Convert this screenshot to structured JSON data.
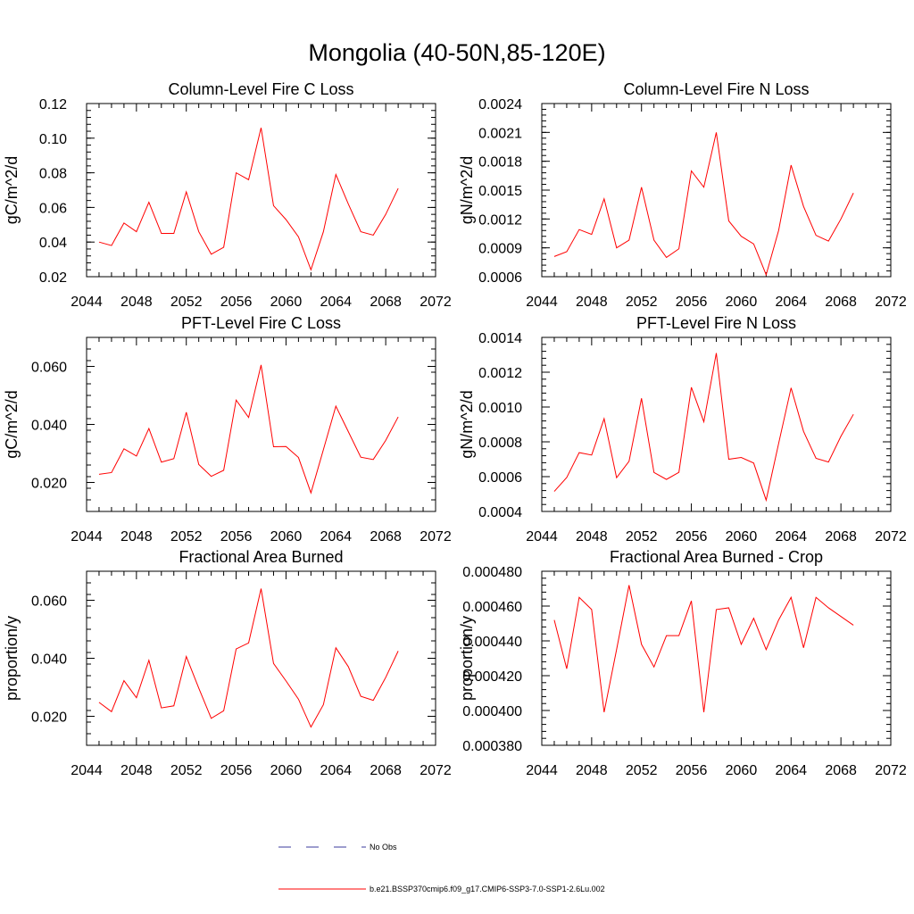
{
  "page": {
    "title": "Mongolia (40-50N,85-120E)"
  },
  "legend": {
    "entries": [
      {
        "label": "No Obs",
        "color": "#3b3b9c",
        "dashed": true
      },
      {
        "label": "b.e21.BSSP370cmip6.f09_g17.CMIP6-SSP3-7.0-SSP1-2.6Lu.002",
        "color": "#ff0000",
        "dashed": false
      }
    ]
  },
  "chart_data": [
    {
      "type": "line",
      "title": "Column-Level Fire C Loss",
      "ylabel": "gC/m^2/d",
      "xlabel": "",
      "xlim": [
        2044,
        2072
      ],
      "ylim": [
        0.02,
        0.12
      ],
      "xticks": [
        "2044",
        "2048",
        "2052",
        "2056",
        "2060",
        "2064",
        "2068",
        "2072"
      ],
      "yticks": [
        "0.02",
        "0.04",
        "0.06",
        "0.08",
        "0.10",
        "0.12"
      ],
      "x": [
        2045,
        2046,
        2047,
        2048,
        2049,
        2050,
        2051,
        2052,
        2053,
        2054,
        2055,
        2056,
        2057,
        2058,
        2059,
        2060,
        2061,
        2062,
        2063,
        2064,
        2065,
        2066,
        2067,
        2068,
        2069
      ],
      "series": [
        {
          "color": "#ff0000",
          "values": [
            0.04,
            0.038,
            0.051,
            0.046,
            0.063,
            0.045,
            0.045,
            0.069,
            0.046,
            0.033,
            0.037,
            0.08,
            0.076,
            0.106,
            0.061,
            0.053,
            0.043,
            0.024,
            0.046,
            0.079,
            0.062,
            0.046,
            0.044,
            0.056,
            0.071
          ]
        }
      ]
    },
    {
      "type": "line",
      "title": "Column-Level Fire N Loss",
      "ylabel": "gN/m^2/d",
      "xlabel": "",
      "xlim": [
        2044,
        2072
      ],
      "ylim": [
        0.0006,
        0.0024
      ],
      "xticks": [
        "2044",
        "2048",
        "2052",
        "2056",
        "2060",
        "2064",
        "2068",
        "2072"
      ],
      "yticks": [
        "0.0006",
        "0.0009",
        "0.0012",
        "0.0015",
        "0.0018",
        "0.0021",
        "0.0024"
      ],
      "x": [
        2045,
        2046,
        2047,
        2048,
        2049,
        2050,
        2051,
        2052,
        2053,
        2054,
        2055,
        2056,
        2057,
        2058,
        2059,
        2060,
        2061,
        2062,
        2063,
        2064,
        2065,
        2066,
        2067,
        2068,
        2069
      ],
      "series": [
        {
          "color": "#ff0000",
          "values": [
            0.00081,
            0.00086,
            0.00109,
            0.00104,
            0.00141,
            0.0009,
            0.00098,
            0.00153,
            0.00098,
            0.0008,
            0.00089,
            0.0017,
            0.00153,
            0.0021,
            0.00118,
            0.00102,
            0.00094,
            0.00062,
            0.00108,
            0.00176,
            0.00133,
            0.00103,
            0.00097,
            0.0012,
            0.00147
          ]
        }
      ]
    },
    {
      "type": "line",
      "title": "PFT-Level Fire C Loss",
      "ylabel": "gC/m^2/d",
      "xlabel": "",
      "xlim": [
        2044,
        2072
      ],
      "ylim": [
        0.01,
        0.07
      ],
      "xticks": [
        "2044",
        "2048",
        "2052",
        "2056",
        "2060",
        "2064",
        "2068",
        "2072"
      ],
      "yticks": [
        "0.020",
        "0.040",
        "0.060"
      ],
      "ytick_values": [
        0.02,
        0.04,
        0.06
      ],
      "x": [
        2045,
        2046,
        2047,
        2048,
        2049,
        2050,
        2051,
        2052,
        2053,
        2054,
        2055,
        2056,
        2057,
        2058,
        2059,
        2060,
        2061,
        2062,
        2063,
        2064,
        2065,
        2066,
        2067,
        2068,
        2069
      ],
      "series": [
        {
          "color": "#ff0000",
          "values": [
            0.0228,
            0.0234,
            0.0316,
            0.0291,
            0.0386,
            0.027,
            0.0282,
            0.0442,
            0.0262,
            0.0221,
            0.0242,
            0.0484,
            0.0424,
            0.0605,
            0.0323,
            0.0324,
            0.0286,
            0.0164,
            0.0313,
            0.0463,
            0.0375,
            0.0287,
            0.0279,
            0.0345,
            0.0426
          ]
        }
      ]
    },
    {
      "type": "line",
      "title": "PFT-Level Fire N Loss",
      "ylabel": "gN/m^2/d",
      "xlabel": "",
      "xlim": [
        2044,
        2072
      ],
      "ylim": [
        0.0004,
        0.0014
      ],
      "xticks": [
        "2044",
        "2048",
        "2052",
        "2056",
        "2060",
        "2064",
        "2068",
        "2072"
      ],
      "yticks": [
        "0.0004",
        "0.0006",
        "0.0008",
        "0.0010",
        "0.0012",
        "0.0014"
      ],
      "x": [
        2045,
        2046,
        2047,
        2048,
        2049,
        2050,
        2051,
        2052,
        2053,
        2054,
        2055,
        2056,
        2057,
        2058,
        2059,
        2060,
        2061,
        2062,
        2063,
        2064,
        2065,
        2066,
        2067,
        2068,
        2069
      ],
      "series": [
        {
          "color": "#ff0000",
          "values": [
            0.000515,
            0.000595,
            0.000738,
            0.000724,
            0.000933,
            0.000594,
            0.000688,
            0.00105,
            0.000624,
            0.000584,
            0.000625,
            0.001113,
            0.000915,
            0.00131,
            0.0007,
            0.00071,
            0.000678,
            0.000465,
            0.00079,
            0.00111,
            0.00086,
            0.000705,
            0.000684,
            0.000832,
            0.000958
          ]
        }
      ]
    },
    {
      "type": "line",
      "title": "Fractional Area Burned",
      "ylabel": "proportion/y",
      "xlabel": "",
      "xlim": [
        2044,
        2072
      ],
      "ylim": [
        0.01,
        0.07
      ],
      "xticks": [
        "2044",
        "2048",
        "2052",
        "2056",
        "2060",
        "2064",
        "2068",
        "2072"
      ],
      "yticks": [
        "0.020",
        "0.040",
        "0.060"
      ],
      "ytick_values": [
        0.02,
        0.04,
        0.06
      ],
      "x": [
        2045,
        2046,
        2047,
        2048,
        2049,
        2050,
        2051,
        2052,
        2053,
        2054,
        2055,
        2056,
        2057,
        2058,
        2059,
        2060,
        2061,
        2062,
        2063,
        2064,
        2065,
        2066,
        2067,
        2068,
        2069
      ],
      "series": [
        {
          "color": "#ff0000",
          "values": [
            0.0248,
            0.0216,
            0.0323,
            0.0264,
            0.0393,
            0.0229,
            0.0236,
            0.0406,
            0.0297,
            0.0193,
            0.0219,
            0.0432,
            0.0453,
            0.064,
            0.0382,
            0.0322,
            0.0259,
            0.0163,
            0.024,
            0.0436,
            0.0371,
            0.0269,
            0.0255,
            0.0334,
            0.0425
          ]
        }
      ]
    },
    {
      "type": "line",
      "title": "Fractional Area Burned - Crop",
      "ylabel": "proportion/y",
      "xlabel": "",
      "xlim": [
        2044,
        2072
      ],
      "ylim": [
        0.00038,
        0.00048
      ],
      "xticks": [
        "2044",
        "2048",
        "2052",
        "2056",
        "2060",
        "2064",
        "2068",
        "2072"
      ],
      "yticks": [
        "0.000380",
        "0.000400",
        "0.000420",
        "0.000440",
        "0.000460",
        "0.000480"
      ],
      "x": [
        2045,
        2046,
        2047,
        2048,
        2049,
        2050,
        2051,
        2052,
        2053,
        2054,
        2055,
        2056,
        2057,
        2058,
        2059,
        2060,
        2061,
        2062,
        2063,
        2064,
        2065,
        2066,
        2067,
        2068,
        2069
      ],
      "series": [
        {
          "color": "#ff0000",
          "values": [
            0.000452,
            0.000424,
            0.000465,
            0.000458,
            0.000399,
            0.000435,
            0.000472,
            0.000438,
            0.000425,
            0.000443,
            0.000443,
            0.000463,
            0.000399,
            0.000458,
            0.000459,
            0.000438,
            0.000453,
            0.000435,
            0.000452,
            0.000465,
            0.000436,
            0.000465,
            0.000459,
            0.000454,
            0.000449
          ]
        }
      ]
    }
  ]
}
